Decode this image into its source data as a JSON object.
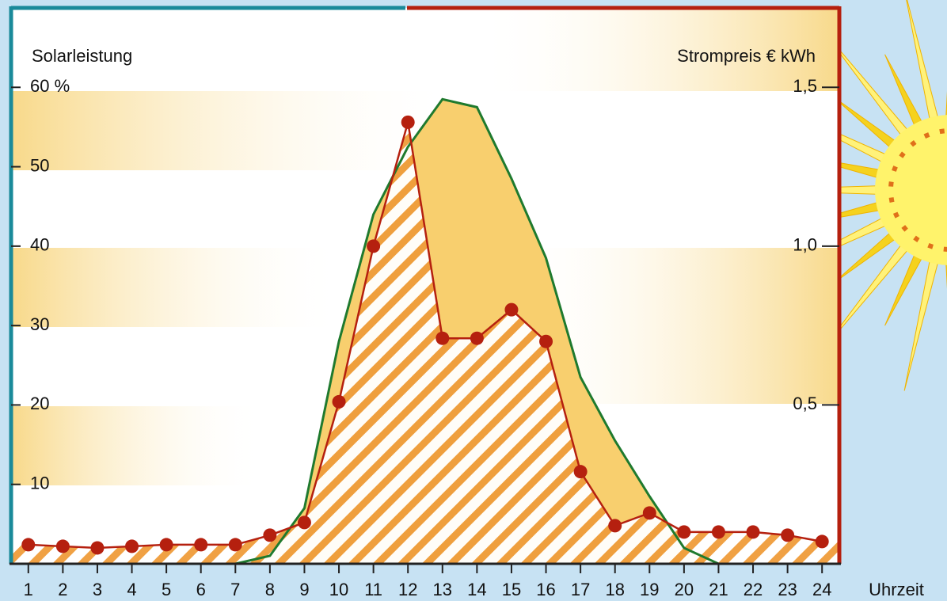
{
  "chart_data": {
    "type": "area-line",
    "y_label": "Solarleistung",
    "y2_label": "Strompreis  € kWh",
    "x_label": "Uhrzeit",
    "x": [
      1,
      2,
      3,
      4,
      5,
      6,
      7,
      8,
      9,
      10,
      11,
      12,
      13,
      14,
      15,
      16,
      17,
      18,
      19,
      20,
      21,
      22,
      23,
      24
    ],
    "xlim": [
      0.5,
      24.5
    ],
    "xticks": [
      1,
      2,
      3,
      4,
      5,
      6,
      7,
      8,
      9,
      10,
      11,
      12,
      13,
      14,
      15,
      16,
      17,
      18,
      19,
      20,
      21,
      22,
      23,
      24
    ],
    "ylim": [
      0,
      70
    ],
    "yticks": [
      10,
      20,
      30,
      40,
      50,
      {
        "value": 60,
        "label": "60 %"
      }
    ],
    "y2lim": [
      0,
      1.75
    ],
    "y2ticks": [
      {
        "value": 0.5,
        "label": "0,5"
      },
      {
        "value": 1.0,
        "label": "1,0"
      },
      {
        "value": 1.5,
        "label": "1,5"
      }
    ],
    "series": [
      {
        "name": "Solarleistung",
        "color": "#f8cf6e",
        "line_color": "#1f7a2e",
        "values": [
          null,
          null,
          null,
          null,
          null,
          0,
          0,
          1,
          7,
          28,
          44,
          52.5,
          58.5,
          57.5,
          48.5,
          38.5,
          23.5,
          15.5,
          8.5,
          2,
          0,
          null,
          null,
          null
        ]
      },
      {
        "name": "Strompreis",
        "color": "#b5200f",
        "axis": "y2",
        "values": [
          0.06,
          0.055,
          0.05,
          0.055,
          0.06,
          0.06,
          0.06,
          0.09,
          0.13,
          0.51,
          1.0,
          1.39,
          0.71,
          0.71,
          0.8,
          0.7,
          0.29,
          0.12,
          0.16,
          0.1,
          0.1,
          0.1,
          0.09,
          0.07
        ]
      }
    ]
  }
}
